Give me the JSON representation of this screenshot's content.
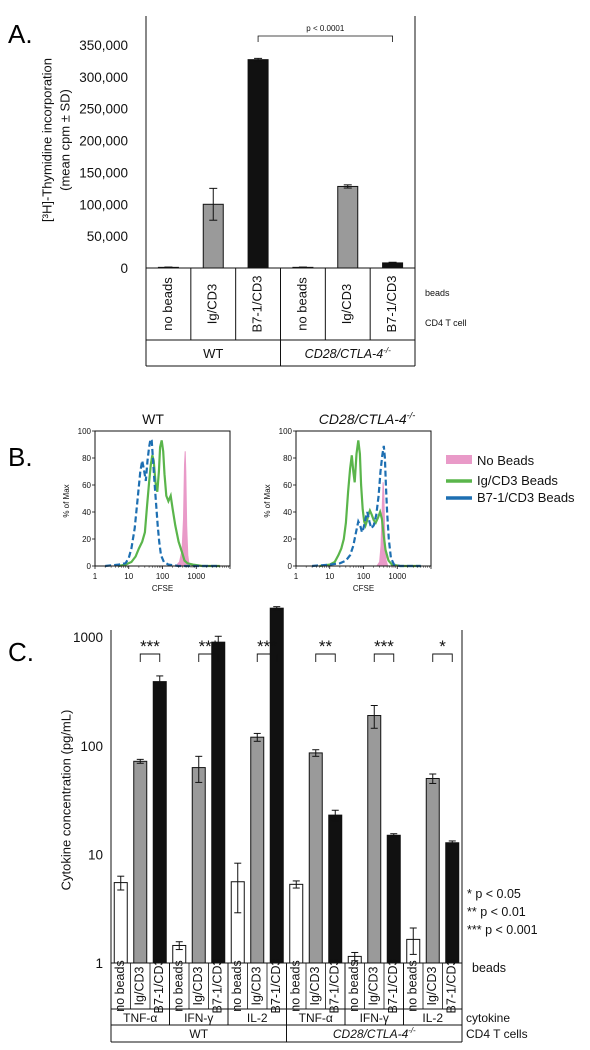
{
  "panel_labels": {
    "a": "A.",
    "b": "B.",
    "c": "C."
  },
  "colors": {
    "gray_bar": "#9a9a9a",
    "black_bar": "#111111",
    "white_bar": "#ffffff",
    "no_beads": "#e99ac8",
    "ig_cd3": "#5ab54b",
    "b7_cd3": "#1d6fb2"
  },
  "chart_data": [
    {
      "type": "bar",
      "id": "A",
      "ylabel_lines": [
        "[³H]-Thymidine incorporation",
        "(mean cpm ± SD)"
      ],
      "ylim": [
        0,
        350000
      ],
      "yticks": [
        0,
        50000,
        100000,
        150000,
        200000,
        250000,
        300000,
        350000
      ],
      "ytick_labels": [
        "0",
        "50,000",
        "100,000",
        "150,000",
        "200,000",
        "250,000",
        "300,000",
        "350,000"
      ],
      "categories": [
        "no beads",
        "Ig/CD3",
        "B7-1/CD3",
        "no beads",
        "Ig/CD3",
        "B7-1/CD3"
      ],
      "values": [
        1000,
        100000,
        327000,
        1000,
        128000,
        8000
      ],
      "errors": [
        500,
        25000,
        2000,
        500,
        2500,
        1000
      ],
      "bar_fill": [
        "white",
        "gray",
        "black",
        "white",
        "gray",
        "black"
      ],
      "row_labels": {
        "beads": "beads",
        "cd4": "CD4 T cell"
      },
      "groups": [
        "WT",
        "CD28/CTLA-4"
      ],
      "group_superscript": "-/-",
      "annotation": "p < 0.0001"
    },
    {
      "type": "histogram",
      "id": "B",
      "titles": [
        "WT",
        "CD28/CTLA-4"
      ],
      "title_superscript": "-/-",
      "xlabel": "CFSE",
      "ylabel": "% of Max",
      "xscale": "log",
      "xlim": [
        1,
        10000
      ],
      "ylim": [
        0,
        100
      ],
      "xtick_labels": [
        "1",
        "10",
        "100",
        "1000"
      ],
      "ytick_labels": [
        "0",
        "20",
        "40",
        "60",
        "80",
        "100"
      ],
      "legend": [
        "No Beads",
        "Ig/CD3 Beads",
        "B7-1/CD3 Beads"
      ],
      "plots": [
        {
          "no_beads": [
            [
              250,
              0
            ],
            [
              320,
              3
            ],
            [
              380,
              12
            ],
            [
              420,
              35
            ],
            [
              450,
              75
            ],
            [
              470,
              85
            ],
            [
              490,
              70
            ],
            [
              520,
              30
            ],
            [
              560,
              8
            ],
            [
              620,
              0
            ]
          ],
          "ig_cd3": [
            [
              5,
              0
            ],
            [
              8,
              1
            ],
            [
              12,
              3
            ],
            [
              16,
              7
            ],
            [
              20,
              13
            ],
            [
              25,
              18
            ],
            [
              30,
              25
            ],
            [
              35,
              45
            ],
            [
              40,
              62
            ],
            [
              45,
              75
            ],
            [
              50,
              82
            ],
            [
              55,
              78
            ],
            [
              62,
              62
            ],
            [
              70,
              55
            ],
            [
              78,
              70
            ],
            [
              85,
              88
            ],
            [
              95,
              93
            ],
            [
              105,
              85
            ],
            [
              115,
              68
            ],
            [
              130,
              52
            ],
            [
              150,
              48
            ],
            [
              175,
              52
            ],
            [
              200,
              42
            ],
            [
              240,
              30
            ],
            [
              300,
              18
            ],
            [
              380,
              10
            ],
            [
              450,
              4
            ],
            [
              550,
              2
            ],
            [
              800,
              1
            ],
            [
              1500,
              0
            ],
            [
              5000,
              0
            ]
          ],
          "b7_cd3": [
            [
              2,
              0
            ],
            [
              5,
              1
            ],
            [
              8,
              2
            ],
            [
              10,
              6
            ],
            [
              12,
              13
            ],
            [
              15,
              28
            ],
            [
              18,
              48
            ],
            [
              22,
              70
            ],
            [
              25,
              78
            ],
            [
              28,
              72
            ],
            [
              32,
              63
            ],
            [
              36,
              78
            ],
            [
              40,
              88
            ],
            [
              44,
              94
            ],
            [
              48,
              93
            ],
            [
              52,
              80
            ],
            [
              58,
              62
            ],
            [
              65,
              45
            ],
            [
              72,
              30
            ],
            [
              80,
              18
            ],
            [
              90,
              8
            ],
            [
              110,
              3
            ],
            [
              150,
              1
            ],
            [
              300,
              0
            ],
            [
              5000,
              0
            ]
          ]
        },
        {
          "no_beads": [
            [
              250,
              0
            ],
            [
              300,
              3
            ],
            [
              330,
              15
            ],
            [
              360,
              45
            ],
            [
              380,
              62
            ],
            [
              400,
              55
            ],
            [
              430,
              20
            ],
            [
              470,
              4
            ],
            [
              520,
              0
            ]
          ],
          "ig_cd3": [
            [
              5,
              0
            ],
            [
              10,
              1
            ],
            [
              14,
              3
            ],
            [
              18,
              8
            ],
            [
              22,
              13
            ],
            [
              26,
              20
            ],
            [
              30,
              32
            ],
            [
              35,
              55
            ],
            [
              40,
              72
            ],
            [
              45,
              82
            ],
            [
              50,
              70
            ],
            [
              55,
              62
            ],
            [
              62,
              83
            ],
            [
              70,
              93
            ],
            [
              78,
              83
            ],
            [
              85,
              60
            ],
            [
              95,
              42
            ],
            [
              105,
              33
            ],
            [
              115,
              30
            ],
            [
              125,
              33
            ],
            [
              140,
              38
            ],
            [
              155,
              41
            ],
            [
              175,
              38
            ],
            [
              200,
              34
            ],
            [
              230,
              32
            ],
            [
              270,
              36
            ],
            [
              310,
              40
            ],
            [
              350,
              35
            ],
            [
              400,
              22
            ],
            [
              450,
              12
            ],
            [
              550,
              4
            ],
            [
              700,
              1
            ],
            [
              1200,
              0
            ],
            [
              5000,
              0
            ]
          ],
          "b7_cd3": [
            [
              3,
              0
            ],
            [
              10,
              1
            ],
            [
              20,
              2
            ],
            [
              30,
              4
            ],
            [
              40,
              8
            ],
            [
              50,
              15
            ],
            [
              60,
              25
            ],
            [
              70,
              33
            ],
            [
              80,
              30
            ],
            [
              90,
              25
            ],
            [
              100,
              28
            ],
            [
              115,
              35
            ],
            [
              130,
              40
            ],
            [
              150,
              33
            ],
            [
              170,
              28
            ],
            [
              200,
              30
            ],
            [
              240,
              38
            ],
            [
              280,
              52
            ],
            [
              320,
              70
            ],
            [
              360,
              82
            ],
            [
              400,
              89
            ],
            [
              430,
              80
            ],
            [
              460,
              60
            ],
            [
              500,
              40
            ],
            [
              560,
              20
            ],
            [
              650,
              6
            ],
            [
              800,
              1
            ],
            [
              1200,
              0
            ],
            [
              5000,
              0
            ]
          ]
        }
      ]
    },
    {
      "type": "bar",
      "id": "C",
      "ylabel": "Cytokine concentration (pg/mL)",
      "yscale": "log",
      "ylim": [
        1,
        3000
      ],
      "ytick_labels": [
        "1",
        "10",
        "100",
        "1000"
      ],
      "groups": [
        {
          "genotype": "WT",
          "cytokine": "TNF-α",
          "values": [
            5.5,
            72,
            390
          ],
          "errors": [
            0.8,
            3,
            50
          ],
          "sig": "***"
        },
        {
          "genotype": "WT",
          "cytokine": "IFN-γ",
          "values": [
            1.45,
            63,
            900
          ],
          "errors": [
            0.12,
            17,
            120
          ],
          "sig": "***"
        },
        {
          "genotype": "WT",
          "cytokine": "IL-2",
          "values": [
            5.6,
            120,
            1850
          ],
          "errors": [
            2.7,
            10,
            60
          ],
          "sig": "***"
        },
        {
          "genotype": "CD28/CTLA-4",
          "cytokine": "TNF-α",
          "values": [
            5.3,
            86,
            23
          ],
          "errors": [
            0.4,
            6,
            2.5
          ],
          "sig": "**"
        },
        {
          "genotype": "CD28/CTLA-4",
          "cytokine": "IFN-γ",
          "values": [
            1.15,
            190,
            15
          ],
          "errors": [
            0.1,
            45,
            0.5
          ],
          "sig": "***"
        },
        {
          "genotype": "CD28/CTLA-4",
          "cytokine": "IL-2",
          "values": [
            1.65,
            50,
            12.8
          ],
          "errors": [
            0.45,
            5,
            0.5
          ],
          "sig": "*"
        }
      ],
      "bead_labels": [
        "no beads",
        "Ig/CD3",
        "B7-1/CD3"
      ],
      "row_labels": {
        "beads": "beads",
        "cytokine": "cytokine",
        "cd4": "CD4 T cells"
      },
      "genotypes": [
        "WT",
        "CD28/CTLA-4"
      ],
      "genotype_superscript": "-/-",
      "stats_legend": [
        "* p < 0.05",
        "** p < 0.01",
        "*** p < 0.001"
      ]
    }
  ]
}
